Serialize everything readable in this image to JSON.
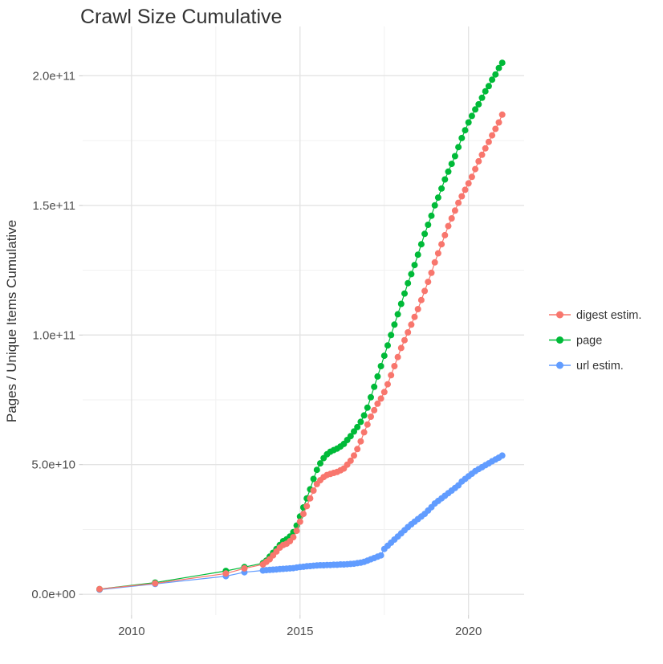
{
  "page": {
    "background": "#ffffff"
  },
  "chart_data": {
    "type": "line",
    "subtype": "scatter-line-cumulative",
    "title": "Crawl Size Cumulative",
    "xlabel": "",
    "ylabel": "Pages / Unique Items Cumulative",
    "grid": true,
    "legend_position": "right",
    "xlim": [
      2008.55,
      2021.65
    ],
    "ylim_e9": [
      -8,
      219
    ],
    "unit_note": "series point values are in units of 1e9 (50 = 5.0e+10)",
    "x_ticks": [
      {
        "value": 2010,
        "label": "2010"
      },
      {
        "value": 2015,
        "label": "2015"
      },
      {
        "value": 2020,
        "label": "2020"
      }
    ],
    "x_minor": [
      2012.5,
      2017.5
    ],
    "y_ticks": [
      {
        "value": 0,
        "label": "0.0e+00"
      },
      {
        "value": 50,
        "label": "5.0e+10"
      },
      {
        "value": 100,
        "label": "1.0e+11"
      },
      {
        "value": 150,
        "label": "1.5e+11"
      },
      {
        "value": 200,
        "label": "2.0e+11"
      }
    ],
    "y_minor": [
      25,
      75,
      125,
      175
    ],
    "colors": {
      "digest": "#F8766D",
      "page": "#00BA38",
      "url": "#619CFF",
      "grid_major": "#E4E4E4",
      "grid_minor": "#F1F1F1",
      "tick": "#C9C9C9",
      "axis_text": "#4D4D4D",
      "text_dark": "#333333"
    },
    "series": [
      {
        "id": "digest-estim",
        "name": "digest estim.",
        "color": "#F8766D",
        "points_e9": [
          [
            2009.05,
            2
          ],
          [
            2010.7,
            4.2
          ],
          [
            2012.8,
            8
          ],
          [
            2013.35,
            10
          ],
          [
            2013.9,
            11.5
          ],
          [
            2014.0,
            12.5
          ],
          [
            2014.1,
            13.5
          ],
          [
            2014.2,
            15
          ],
          [
            2014.3,
            16.5
          ],
          [
            2014.4,
            18
          ],
          [
            2014.5,
            19
          ],
          [
            2014.6,
            19.5
          ],
          [
            2014.7,
            20.5
          ],
          [
            2014.8,
            22
          ],
          [
            2014.9,
            24.5
          ],
          [
            2015.0,
            28
          ],
          [
            2015.1,
            31
          ],
          [
            2015.2,
            34
          ],
          [
            2015.3,
            37
          ],
          [
            2015.4,
            40
          ],
          [
            2015.5,
            42.5
          ],
          [
            2015.6,
            44
          ],
          [
            2015.7,
            45.2
          ],
          [
            2015.8,
            46
          ],
          [
            2015.9,
            46.4
          ],
          [
            2016.0,
            46.8
          ],
          [
            2016.1,
            47.2
          ],
          [
            2016.2,
            47.8
          ],
          [
            2016.3,
            48.5
          ],
          [
            2016.4,
            50
          ],
          [
            2016.5,
            51.5
          ],
          [
            2016.6,
            53.5
          ],
          [
            2016.7,
            56
          ],
          [
            2016.8,
            59
          ],
          [
            2016.9,
            62.5
          ],
          [
            2017.0,
            65.5
          ],
          [
            2017.1,
            68.5
          ],
          [
            2017.2,
            71
          ],
          [
            2017.3,
            73.5
          ],
          [
            2017.4,
            75.5
          ],
          [
            2017.5,
            78
          ],
          [
            2017.6,
            81
          ],
          [
            2017.7,
            84.5
          ],
          [
            2017.8,
            88
          ],
          [
            2017.9,
            91.5
          ],
          [
            2018.0,
            95
          ],
          [
            2018.1,
            98
          ],
          [
            2018.2,
            101
          ],
          [
            2018.3,
            104
          ],
          [
            2018.4,
            107
          ],
          [
            2018.5,
            110
          ],
          [
            2018.6,
            113.5
          ],
          [
            2018.7,
            117
          ],
          [
            2018.8,
            120.5
          ],
          [
            2018.9,
            124
          ],
          [
            2019.0,
            128
          ],
          [
            2019.1,
            131.5
          ],
          [
            2019.2,
            135
          ],
          [
            2019.3,
            138.5
          ],
          [
            2019.4,
            142
          ],
          [
            2019.5,
            145
          ],
          [
            2019.6,
            148
          ],
          [
            2019.7,
            151
          ],
          [
            2019.8,
            153.5
          ],
          [
            2019.9,
            156
          ],
          [
            2020.0,
            158.5
          ],
          [
            2020.1,
            161
          ],
          [
            2020.2,
            164
          ],
          [
            2020.3,
            167
          ],
          [
            2020.4,
            169.5
          ],
          [
            2020.5,
            172
          ],
          [
            2020.6,
            174.5
          ],
          [
            2020.7,
            177
          ],
          [
            2020.8,
            179.5
          ],
          [
            2020.9,
            182
          ],
          [
            2021.0,
            185
          ]
        ]
      },
      {
        "id": "page",
        "name": "page",
        "color": "#00BA38",
        "points_e9": [
          [
            2009.05,
            2
          ],
          [
            2010.7,
            4.5
          ],
          [
            2012.8,
            9
          ],
          [
            2013.35,
            10.5
          ],
          [
            2013.9,
            12
          ],
          [
            2014.0,
            13
          ],
          [
            2014.1,
            14.5
          ],
          [
            2014.2,
            16
          ],
          [
            2014.3,
            17.5
          ],
          [
            2014.4,
            19
          ],
          [
            2014.5,
            20.5
          ],
          [
            2014.6,
            21.2
          ],
          [
            2014.7,
            22.3
          ],
          [
            2014.8,
            24
          ],
          [
            2014.9,
            26.5
          ],
          [
            2015.0,
            30
          ],
          [
            2015.1,
            33.5
          ],
          [
            2015.2,
            37
          ],
          [
            2015.3,
            40.5
          ],
          [
            2015.4,
            44.5
          ],
          [
            2015.5,
            48
          ],
          [
            2015.6,
            50.5
          ],
          [
            2015.7,
            52.5
          ],
          [
            2015.8,
            54
          ],
          [
            2015.9,
            55
          ],
          [
            2016.0,
            55.6
          ],
          [
            2016.1,
            56.2
          ],
          [
            2016.2,
            57
          ],
          [
            2016.3,
            58
          ],
          [
            2016.4,
            59.5
          ],
          [
            2016.5,
            61
          ],
          [
            2016.6,
            62.8
          ],
          [
            2016.7,
            64.5
          ],
          [
            2016.8,
            66.5
          ],
          [
            2016.9,
            69
          ],
          [
            2017.0,
            72
          ],
          [
            2017.1,
            76
          ],
          [
            2017.2,
            80
          ],
          [
            2017.3,
            84
          ],
          [
            2017.4,
            88
          ],
          [
            2017.5,
            92
          ],
          [
            2017.6,
            96
          ],
          [
            2017.7,
            100
          ],
          [
            2017.8,
            104
          ],
          [
            2017.9,
            108
          ],
          [
            2018.0,
            112
          ],
          [
            2018.1,
            116
          ],
          [
            2018.2,
            120
          ],
          [
            2018.3,
            123.5
          ],
          [
            2018.4,
            127
          ],
          [
            2018.5,
            131
          ],
          [
            2018.6,
            135
          ],
          [
            2018.7,
            139
          ],
          [
            2018.8,
            142.5
          ],
          [
            2018.9,
            146
          ],
          [
            2019.0,
            150
          ],
          [
            2019.1,
            153
          ],
          [
            2019.2,
            156.5
          ],
          [
            2019.3,
            160
          ],
          [
            2019.4,
            163
          ],
          [
            2019.5,
            166
          ],
          [
            2019.6,
            169
          ],
          [
            2019.7,
            172.5
          ],
          [
            2019.8,
            176
          ],
          [
            2019.9,
            179
          ],
          [
            2020.0,
            182
          ],
          [
            2020.1,
            184.5
          ],
          [
            2020.2,
            187
          ],
          [
            2020.3,
            189
          ],
          [
            2020.4,
            191.5
          ],
          [
            2020.5,
            194
          ],
          [
            2020.6,
            196
          ],
          [
            2020.7,
            198.5
          ],
          [
            2020.8,
            200.5
          ],
          [
            2020.9,
            203
          ],
          [
            2021.0,
            205
          ]
        ]
      },
      {
        "id": "url-estim",
        "name": "url estim.",
        "color": "#619CFF",
        "points_e9": [
          [
            2009.05,
            1.8
          ],
          [
            2010.7,
            4
          ],
          [
            2012.8,
            7
          ],
          [
            2013.35,
            8.5
          ],
          [
            2013.9,
            9.2
          ],
          [
            2014.0,
            9.3
          ],
          [
            2014.1,
            9.4
          ],
          [
            2014.2,
            9.5
          ],
          [
            2014.3,
            9.6
          ],
          [
            2014.4,
            9.7
          ],
          [
            2014.5,
            9.8
          ],
          [
            2014.6,
            9.9
          ],
          [
            2014.7,
            10
          ],
          [
            2014.8,
            10.1
          ],
          [
            2014.9,
            10.3
          ],
          [
            2015.0,
            10.5
          ],
          [
            2015.1,
            10.6
          ],
          [
            2015.2,
            10.8
          ],
          [
            2015.3,
            10.9
          ],
          [
            2015.4,
            11
          ],
          [
            2015.5,
            11.1
          ],
          [
            2015.6,
            11.2
          ],
          [
            2015.7,
            11.2
          ],
          [
            2015.8,
            11.3
          ],
          [
            2015.9,
            11.3
          ],
          [
            2016.0,
            11.4
          ],
          [
            2016.1,
            11.4
          ],
          [
            2016.2,
            11.5
          ],
          [
            2016.3,
            11.5
          ],
          [
            2016.4,
            11.6
          ],
          [
            2016.5,
            11.7
          ],
          [
            2016.6,
            11.8
          ],
          [
            2016.7,
            12
          ],
          [
            2016.8,
            12.2
          ],
          [
            2016.9,
            12.5
          ],
          [
            2017.0,
            13
          ],
          [
            2017.1,
            13.5
          ],
          [
            2017.2,
            14
          ],
          [
            2017.3,
            14.5
          ],
          [
            2017.4,
            15
          ],
          [
            2017.5,
            17.5
          ],
          [
            2017.6,
            18.7
          ],
          [
            2017.7,
            19.9
          ],
          [
            2017.8,
            21.1
          ],
          [
            2017.9,
            22.3
          ],
          [
            2018.0,
            23.5
          ],
          [
            2018.1,
            24.7
          ],
          [
            2018.2,
            25.9
          ],
          [
            2018.3,
            27
          ],
          [
            2018.4,
            28
          ],
          [
            2018.5,
            29
          ],
          [
            2018.6,
            30
          ],
          [
            2018.7,
            31
          ],
          [
            2018.8,
            32.3
          ],
          [
            2018.9,
            33.6
          ],
          [
            2019.0,
            35
          ],
          [
            2019.1,
            36
          ],
          [
            2019.2,
            37
          ],
          [
            2019.3,
            38
          ],
          [
            2019.4,
            39
          ],
          [
            2019.5,
            40
          ],
          [
            2019.6,
            41
          ],
          [
            2019.7,
            42
          ],
          [
            2019.8,
            43.5
          ],
          [
            2019.9,
            44.5
          ],
          [
            2020.0,
            45.5
          ],
          [
            2020.1,
            46.5
          ],
          [
            2020.2,
            47.5
          ],
          [
            2020.3,
            48.3
          ],
          [
            2020.4,
            49
          ],
          [
            2020.5,
            49.8
          ],
          [
            2020.6,
            50.5
          ],
          [
            2020.7,
            51.3
          ],
          [
            2020.8,
            52
          ],
          [
            2020.9,
            52.7
          ],
          [
            2021.0,
            53.5
          ]
        ]
      }
    ]
  }
}
